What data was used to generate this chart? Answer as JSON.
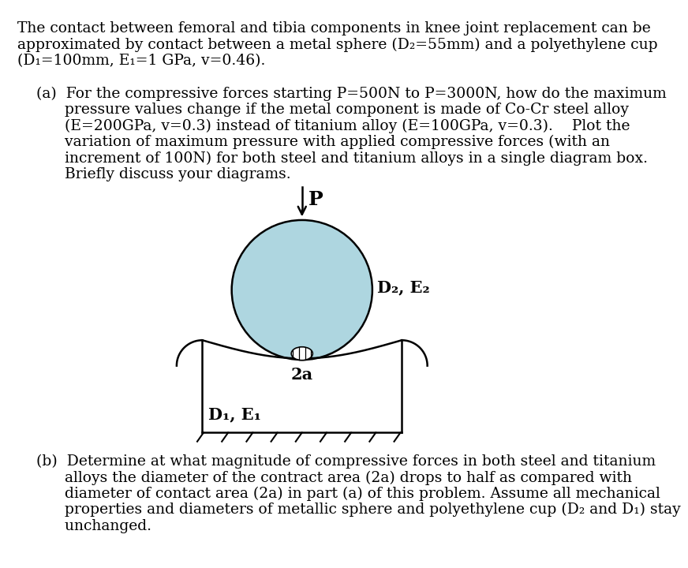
{
  "bg_color": "#ffffff",
  "text_color": "#000000",
  "sphere_fill": "#aed6e0",
  "sphere_edge": "#000000",
  "title_line1": "The contact between femoral and tibia components in knee joint replacement can be",
  "title_line2": "approximated by contact between a metal sphere (D₂=55mm) and a polyethylene cup",
  "title_line3": "(D₁=100mm, E₁=1 GPa, v=0.46).",
  "parta_line1": "    (a)  For the compressive forces starting P=500N to P=3000N, how do the maximum",
  "parta_line2": "          pressure values change if the metal component is made of Co-Cr steel alloy",
  "parta_line3": "          (E=200GPa, v=0.3) instead of titanium alloy (E=100GPa, v=0.3).    Plot the",
  "parta_line4": "          variation of maximum pressure with applied compressive forces (with an",
  "parta_line5": "          increment of 100N) for both steel and titanium alloys in a single diagram box.",
  "parta_line6": "          Briefly discuss your diagrams.",
  "partb_line1": "    (b)  Determine at what magnitude of compressive forces in both steel and titanium",
  "partb_line2": "          alloys the diameter of the contract area (2a) drops to half as compared with",
  "partb_line3": "          diameter of contact area (2a) in part (a) of this problem. Assume all mechanical",
  "partb_line4": "          properties and diameters of metallic sphere and polyethylene cup (D₂ and D₁) stay",
  "partb_line5": "          unchanged.",
  "label_D2E2": "D₂, E₂",
  "label_D1E1": "D₁, E₁",
  "label_2a": "2a",
  "label_P": "P",
  "font_size_text": 13.5,
  "font_size_labels": 15,
  "font_family": "DejaVu Serif"
}
